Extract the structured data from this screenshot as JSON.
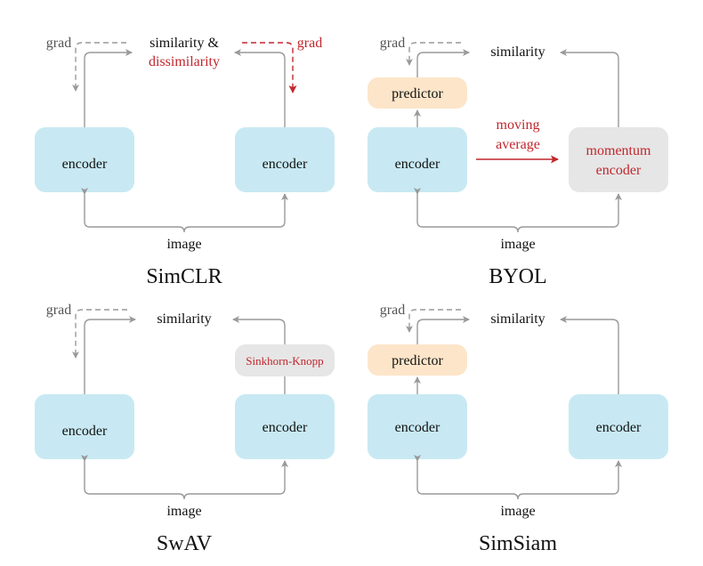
{
  "colors": {
    "encoder": "#c8e9f3",
    "predictor": "#fde5c9",
    "momentum": "#e6e6e6",
    "red": "#c0272d",
    "arrow": "#999999"
  },
  "simclr": {
    "title": "SimCLR",
    "similarity": "similarity &",
    "dissimilarity": "dissimilarity",
    "grad_left": "grad",
    "grad_right": "grad",
    "encoder_left": "encoder",
    "encoder_right": "encoder",
    "image": "image"
  },
  "byol": {
    "title": "BYOL",
    "similarity": "similarity",
    "grad": "grad",
    "predictor": "predictor",
    "encoder": "encoder",
    "moving": "moving",
    "average": "average",
    "momentum": "momentum",
    "momentum_encoder": "encoder",
    "image": "image"
  },
  "swav": {
    "title": "SwAV",
    "similarity": "similarity",
    "grad": "grad",
    "sinkhorn": "Sinkhorn-Knopp",
    "encoder_left": "encoder",
    "encoder_right": "encoder",
    "image": "image"
  },
  "simsiam": {
    "title": "SimSiam",
    "similarity": "similarity",
    "grad": "grad",
    "predictor": "predictor",
    "encoder_left": "encoder",
    "encoder_right": "encoder",
    "image": "image"
  }
}
